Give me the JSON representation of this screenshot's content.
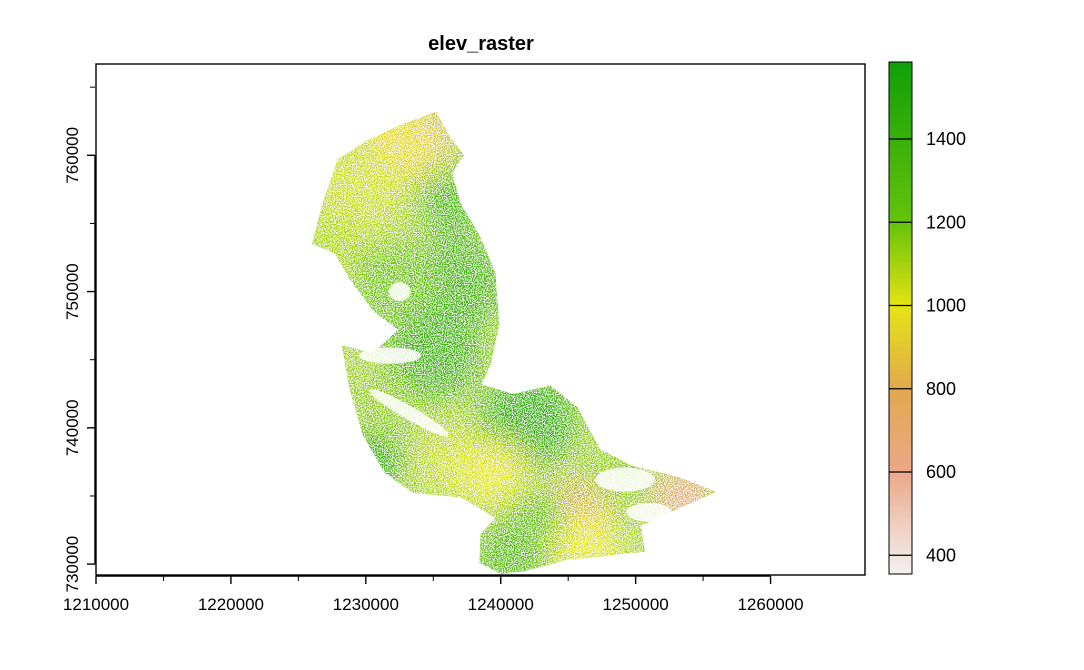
{
  "chart_data": {
    "type": "heatmap",
    "title": "elev_raster",
    "xlabel": "",
    "ylabel": "",
    "xlim": [
      1210000,
      1267000
    ],
    "ylim": [
      729200,
      766700
    ],
    "x_ticks": [
      1210000,
      1220000,
      1230000,
      1240000,
      1250000,
      1260000
    ],
    "y_ticks": [
      730000,
      740000,
      750000,
      760000
    ],
    "x_tick_labels": [
      "1210000",
      "1220000",
      "1230000",
      "1240000",
      "1250000",
      "1260000"
    ],
    "y_tick_labels": [
      "730000",
      "740000",
      "750000",
      "760000"
    ],
    "legend": {
      "position": "right",
      "range": [
        355,
        1585
      ],
      "ticks": [
        400,
        600,
        800,
        1000,
        1200,
        1400
      ],
      "tick_labels": [
        "400",
        "600",
        "800",
        "1000",
        "1200",
        "1400"
      ],
      "color_stops": [
        {
          "value": 355,
          "color": "#f2f2f2"
        },
        {
          "value": 600,
          "color": "#eaa889"
        },
        {
          "value": 800,
          "color": "#e2a84e"
        },
        {
          "value": 1000,
          "color": "#e4e414"
        },
        {
          "value": 1200,
          "color": "#66c20a"
        },
        {
          "value": 1585,
          "color": "#12a009"
        }
      ]
    },
    "raster_extent_outline": [
      [
        1235200,
        763200
      ],
      [
        1236200,
        761400
      ],
      [
        1237300,
        760000
      ],
      [
        1236400,
        758700
      ],
      [
        1237000,
        756500
      ],
      [
        1238500,
        754000
      ],
      [
        1239600,
        751400
      ],
      [
        1239900,
        747600
      ],
      [
        1239300,
        744800
      ],
      [
        1238600,
        743200
      ],
      [
        1240900,
        742500
      ],
      [
        1243700,
        743100
      ],
      [
        1245700,
        741500
      ],
      [
        1247400,
        738400
      ],
      [
        1249800,
        737200
      ],
      [
        1253200,
        736400
      ],
      [
        1256000,
        735300
      ],
      [
        1253200,
        734100
      ],
      [
        1250400,
        732800
      ],
      [
        1250700,
        730900
      ],
      [
        1247000,
        730500
      ],
      [
        1244800,
        730300
      ],
      [
        1241900,
        729500
      ],
      [
        1240000,
        729300
      ],
      [
        1238400,
        730100
      ],
      [
        1238500,
        732200
      ],
      [
        1239600,
        733400
      ],
      [
        1237000,
        734900
      ],
      [
        1233500,
        735200
      ],
      [
        1231400,
        736700
      ],
      [
        1229800,
        739400
      ],
      [
        1228800,
        742800
      ],
      [
        1228200,
        746100
      ],
      [
        1230500,
        745500
      ],
      [
        1232400,
        747200
      ],
      [
        1230600,
        748500
      ],
      [
        1228800,
        750900
      ],
      [
        1227700,
        752800
      ],
      [
        1226000,
        753500
      ],
      [
        1226800,
        756500
      ],
      [
        1227900,
        759700
      ],
      [
        1230100,
        761100
      ],
      [
        1232500,
        762200
      ]
    ],
    "elevation_patches": [
      {
        "x": 1234500,
        "y": 761500,
        "r": 2200,
        "value": 700
      },
      {
        "x": 1232500,
        "y": 761000,
        "r": 3000,
        "value": 950
      },
      {
        "x": 1229000,
        "y": 757000,
        "r": 3500,
        "value": 1050
      },
      {
        "x": 1227600,
        "y": 753500,
        "r": 2500,
        "value": 1100
      },
      {
        "x": 1236500,
        "y": 756500,
        "r": 2500,
        "value": 1350
      },
      {
        "x": 1236800,
        "y": 750500,
        "r": 3500,
        "value": 1380
      },
      {
        "x": 1232000,
        "y": 750800,
        "r": 3000,
        "value": 1200
      },
      {
        "x": 1235000,
        "y": 745500,
        "r": 3500,
        "value": 1400
      },
      {
        "x": 1231000,
        "y": 741500,
        "r": 2500,
        "value": 1150
      },
      {
        "x": 1230500,
        "y": 737500,
        "r": 2200,
        "value": 1500
      },
      {
        "x": 1242000,
        "y": 740500,
        "r": 3500,
        "value": 1450
      },
      {
        "x": 1236500,
        "y": 737500,
        "r": 2500,
        "value": 1050
      },
      {
        "x": 1239500,
        "y": 736500,
        "r": 2500,
        "value": 1000
      },
      {
        "x": 1248500,
        "y": 736500,
        "r": 2600,
        "value": 1150
      },
      {
        "x": 1253500,
        "y": 735000,
        "r": 2200,
        "value": 650
      },
      {
        "x": 1245500,
        "y": 733600,
        "r": 2500,
        "value": 800
      },
      {
        "x": 1242500,
        "y": 732500,
        "r": 3000,
        "value": 1250
      },
      {
        "x": 1246500,
        "y": 731200,
        "r": 2500,
        "value": 1000
      },
      {
        "x": 1240500,
        "y": 730500,
        "r": 2500,
        "value": 1300
      }
    ],
    "no_data_gaps": [
      {
        "x": 1233200,
        "y": 741100,
        "rx": 3400,
        "ry": 500,
        "angle": 30
      },
      {
        "x": 1231800,
        "y": 745300,
        "rx": 2300,
        "ry": 600,
        "angle": 0
      },
      {
        "x": 1232500,
        "y": 750000,
        "rx": 800,
        "ry": 700,
        "angle": 0
      },
      {
        "x": 1249200,
        "y": 736200,
        "rx": 2200,
        "ry": 900,
        "angle": 0
      },
      {
        "x": 1251000,
        "y": 733800,
        "rx": 1700,
        "ry": 700,
        "angle": 0
      }
    ],
    "grid": false,
    "legend_placement": "right"
  }
}
